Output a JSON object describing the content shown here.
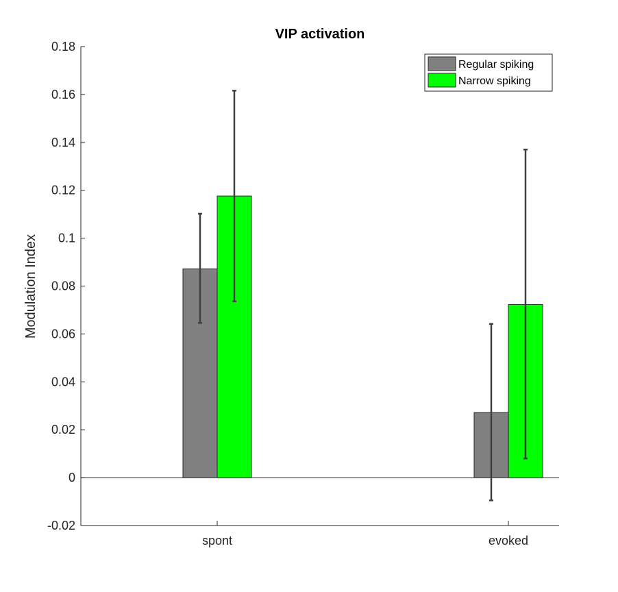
{
  "chart_data": {
    "type": "bar",
    "title": "VIP activation",
    "xlabel": "",
    "ylabel": "Modulation Index",
    "categories": [
      "spont",
      "evoked"
    ],
    "ylim": [
      -0.02,
      0.18
    ],
    "yticks": [
      -0.02,
      0,
      0.02,
      0.04,
      0.06,
      0.08,
      0.1,
      0.12,
      0.14,
      0.16,
      0.18
    ],
    "ytick_labels": [
      "-0.02",
      "0",
      "0.02",
      "0.04",
      "0.06",
      "0.08",
      "0.1",
      "0.12",
      "0.14",
      "0.16",
      "0.18"
    ],
    "grid": false,
    "legend": "top-right",
    "series": [
      {
        "name": "Regular spiking",
        "color": "#808080",
        "values": [
          0.0872,
          0.0272
        ],
        "err_low": [
          0.0646,
          -0.0095
        ],
        "err_high": [
          0.1102,
          0.0642
        ]
      },
      {
        "name": "Narrow spiking",
        "color": "#00ff00",
        "values": [
          0.1176,
          0.0723
        ],
        "err_low": [
          0.0736,
          0.008
        ],
        "err_high": [
          0.1616,
          0.137
        ]
      }
    ]
  }
}
